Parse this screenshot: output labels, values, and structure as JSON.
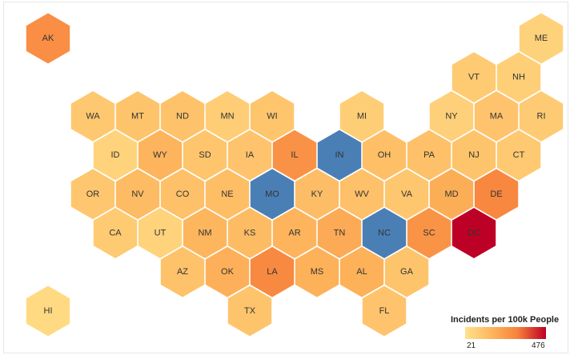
{
  "chart_data": {
    "type": "hexbin_map",
    "value_label": "Incidents per 100k People",
    "min": 21,
    "max": 476,
    "color_scale": [
      "#ffe38c",
      "#fdb25a",
      "#f7813c",
      "#bd0026"
    ],
    "highlight_color": "#4a7fb5",
    "highlighted": [
      "IN",
      "MO",
      "NC"
    ],
    "states": [
      {
        "abbr": "AK",
        "value": 230,
        "row": 0,
        "col": 0
      },
      {
        "abbr": "ME",
        "value": 42,
        "row": 0,
        "col": 11
      },
      {
        "abbr": "VT",
        "value": 58,
        "row": 1,
        "col": 9.5
      },
      {
        "abbr": "NH",
        "value": 48,
        "row": 1,
        "col": 10.5
      },
      {
        "abbr": "WA",
        "value": 62,
        "row": 2,
        "col": 1
      },
      {
        "abbr": "MT",
        "value": 70,
        "row": 2,
        "col": 2
      },
      {
        "abbr": "ND",
        "value": 75,
        "row": 2,
        "col": 3
      },
      {
        "abbr": "MN",
        "value": 52,
        "row": 2,
        "col": 4
      },
      {
        "abbr": "WI",
        "value": 68,
        "row": 2,
        "col": 5
      },
      {
        "abbr": "MI",
        "value": 50,
        "row": 2,
        "col": 7
      },
      {
        "abbr": "NY",
        "value": 45,
        "row": 2,
        "col": 9
      },
      {
        "abbr": "MA",
        "value": 72,
        "row": 2,
        "col": 10
      },
      {
        "abbr": "RI",
        "value": 55,
        "row": 2,
        "col": 11
      },
      {
        "abbr": "ID",
        "value": 40,
        "row": 3,
        "col": 1.5
      },
      {
        "abbr": "WY",
        "value": 110,
        "row": 3,
        "col": 2.5
      },
      {
        "abbr": "SD",
        "value": 68,
        "row": 3,
        "col": 3.5
      },
      {
        "abbr": "IA",
        "value": 72,
        "row": 3,
        "col": 4.5
      },
      {
        "abbr": "IL",
        "value": 215,
        "row": 3,
        "col": 5.5
      },
      {
        "abbr": "IN",
        "value": null,
        "row": 3,
        "col": 6.5
      },
      {
        "abbr": "OH",
        "value": 82,
        "row": 3,
        "col": 7.5
      },
      {
        "abbr": "PA",
        "value": 78,
        "row": 3,
        "col": 8.5
      },
      {
        "abbr": "NJ",
        "value": 70,
        "row": 3,
        "col": 9.5
      },
      {
        "abbr": "CT",
        "value": 60,
        "row": 3,
        "col": 10.5
      },
      {
        "abbr": "OR",
        "value": 66,
        "row": 4,
        "col": 1
      },
      {
        "abbr": "NV",
        "value": 92,
        "row": 4,
        "col": 2
      },
      {
        "abbr": "CO",
        "value": 80,
        "row": 4,
        "col": 3
      },
      {
        "abbr": "NE",
        "value": 85,
        "row": 4,
        "col": 4
      },
      {
        "abbr": "MO",
        "value": null,
        "row": 4,
        "col": 5
      },
      {
        "abbr": "KY",
        "value": 86,
        "row": 4,
        "col": 6
      },
      {
        "abbr": "WV",
        "value": 80,
        "row": 4,
        "col": 7
      },
      {
        "abbr": "VA",
        "value": 66,
        "row": 4,
        "col": 8
      },
      {
        "abbr": "MD",
        "value": 128,
        "row": 4,
        "col": 9
      },
      {
        "abbr": "DE",
        "value": 255,
        "row": 4,
        "col": 10
      },
      {
        "abbr": "CA",
        "value": 58,
        "row": 5,
        "col": 1.5
      },
      {
        "abbr": "UT",
        "value": 40,
        "row": 5,
        "col": 2.5
      },
      {
        "abbr": "NM",
        "value": 105,
        "row": 5,
        "col": 3.5
      },
      {
        "abbr": "KS",
        "value": 90,
        "row": 5,
        "col": 4.5
      },
      {
        "abbr": "AR",
        "value": 110,
        "row": 5,
        "col": 5.5
      },
      {
        "abbr": "TN",
        "value": 140,
        "row": 5,
        "col": 6.5
      },
      {
        "abbr": "NC",
        "value": null,
        "row": 5,
        "col": 7.5
      },
      {
        "abbr": "SC",
        "value": 210,
        "row": 5,
        "col": 8.5
      },
      {
        "abbr": "DC",
        "value": 476,
        "row": 5,
        "col": 9.5
      },
      {
        "abbr": "AZ",
        "value": 75,
        "row": 6,
        "col": 3
      },
      {
        "abbr": "OK",
        "value": 120,
        "row": 6,
        "col": 4
      },
      {
        "abbr": "LA",
        "value": 245,
        "row": 6,
        "col": 5
      },
      {
        "abbr": "MS",
        "value": 118,
        "row": 6,
        "col": 6
      },
      {
        "abbr": "AL",
        "value": 118,
        "row": 6,
        "col": 7
      },
      {
        "abbr": "GA",
        "value": 70,
        "row": 6,
        "col": 8
      },
      {
        "abbr": "HI",
        "value": 30,
        "row": 7,
        "col": 0
      },
      {
        "abbr": "TX",
        "value": 70,
        "row": 7,
        "col": 4.5
      },
      {
        "abbr": "FL",
        "value": 72,
        "row": 7,
        "col": 7.5
      }
    ]
  },
  "legend": {
    "title": "Incidents per 100k People",
    "min_label": "21",
    "max_label": "476"
  }
}
